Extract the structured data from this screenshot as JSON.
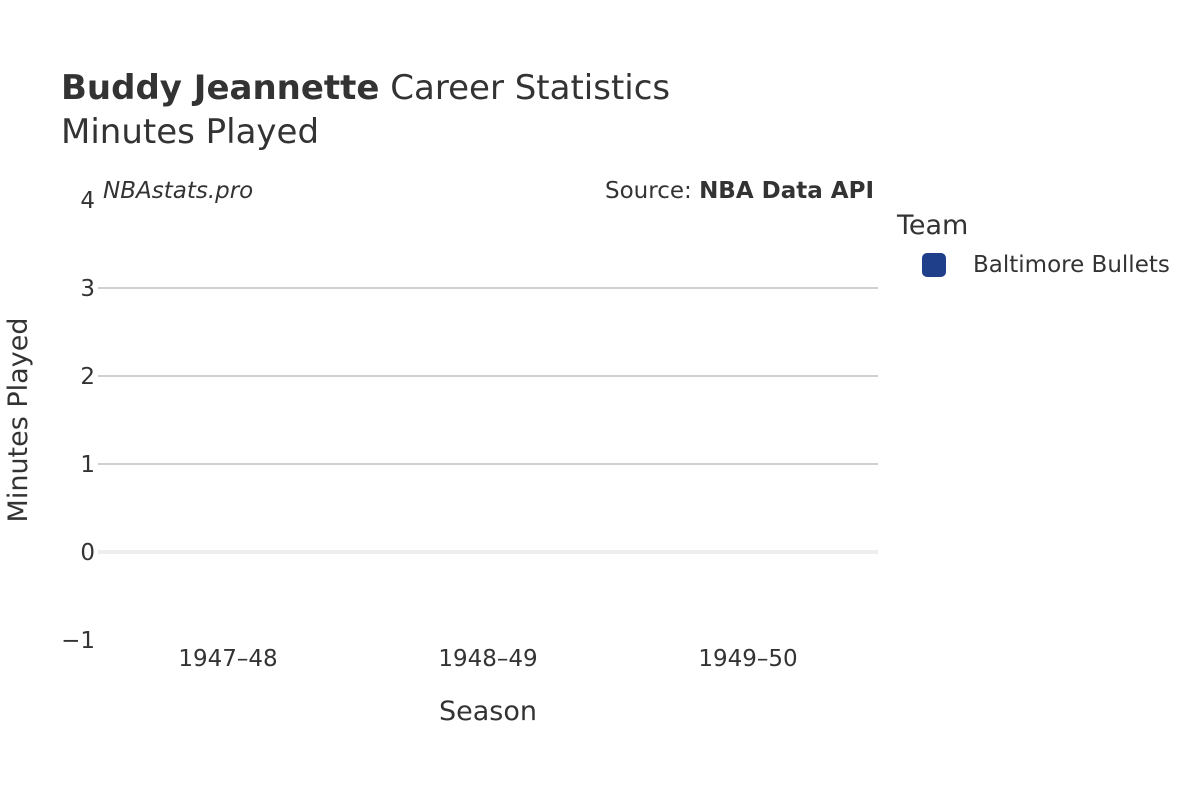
{
  "title": {
    "player": "Buddy Jeannette",
    "rest": "Career Statistics"
  },
  "subtitle": "Minutes Played",
  "watermark": "NBAstats.pro",
  "source": {
    "prefix": "Source: ",
    "name": "NBA Data API"
  },
  "legend": {
    "title": "Team",
    "items": [
      {
        "label": "Baltimore Bullets",
        "color": "#1f3f8a"
      }
    ]
  },
  "colors": {
    "grid": "#c0c0c0",
    "zero_line": "#eeeeee",
    "text": "#333333"
  },
  "chart_data": {
    "type": "bar",
    "title": "Buddy Jeannette Career Statistics",
    "subtitle": "Minutes Played",
    "xlabel": "Season",
    "ylabel": "Minutes Played",
    "categories": [
      "1947–48",
      "1948–49",
      "1949–50"
    ],
    "series": [
      {
        "name": "Baltimore Bullets",
        "values": [
          null,
          null,
          null
        ]
      }
    ],
    "ylim": [
      -1,
      4
    ],
    "yticks": [
      -1,
      0,
      1,
      2,
      3,
      4
    ],
    "ytick_labels": [
      "−1",
      "0",
      "1",
      "2",
      "3",
      "4"
    ],
    "grid": true,
    "legend_position": "right"
  }
}
